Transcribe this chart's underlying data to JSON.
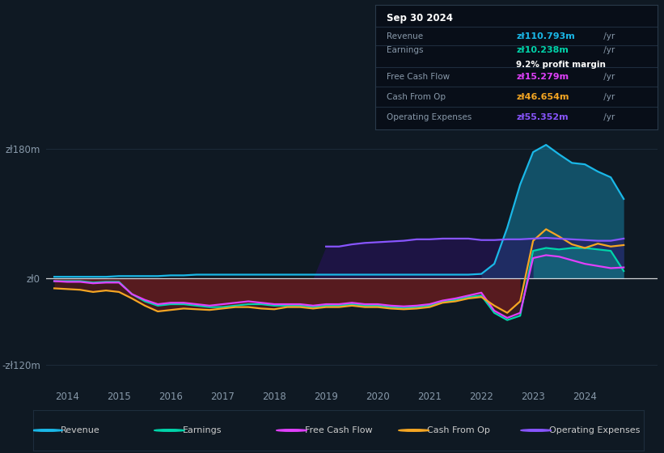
{
  "bg_color": "#0f1923",
  "plot_bg_color": "#0f1923",
  "grid_color": "#1e2d3d",
  "ylim": [
    -145,
    210
  ],
  "yticks": [
    -120,
    0,
    180
  ],
  "ytick_labels": [
    "-zł120m",
    "zł0",
    "zł180m"
  ],
  "xlim_start": 2013.6,
  "xlim_end": 2025.4,
  "xtick_years": [
    2014,
    2015,
    2016,
    2017,
    2018,
    2019,
    2020,
    2021,
    2022,
    2023,
    2024
  ],
  "series_colors": {
    "revenue": "#1ab8e8",
    "earnings": "#00d4aa",
    "free_cash_flow": "#e040fb",
    "cash_from_op": "#f5a623",
    "operating_expenses": "#8855ff"
  },
  "legend": [
    {
      "label": "Revenue",
      "color": "#1ab8e8"
    },
    {
      "label": "Earnings",
      "color": "#00d4aa"
    },
    {
      "label": "Free Cash Flow",
      "color": "#e040fb"
    },
    {
      "label": "Cash From Op",
      "color": "#f5a623"
    },
    {
      "label": "Operating Expenses",
      "color": "#8855ff"
    }
  ],
  "info_box": {
    "date": "Sep 30 2024",
    "revenue_val": "zł110.793m",
    "revenue_color": "#1ab8e8",
    "earnings_val": "zł10.238m",
    "earnings_color": "#00d4aa",
    "profit_margin": "9.2%",
    "fcf_val": "zł15.279m",
    "fcf_color": "#e040fb",
    "cash_op_val": "zł46.654m",
    "cash_op_color": "#f5a623",
    "op_exp_val": "zł55.352m",
    "op_exp_color": "#8855ff"
  },
  "years": [
    2013.75,
    2014.0,
    2014.25,
    2014.5,
    2014.75,
    2015.0,
    2015.25,
    2015.5,
    2015.75,
    2016.0,
    2016.25,
    2016.5,
    2016.75,
    2017.0,
    2017.25,
    2017.5,
    2017.75,
    2018.0,
    2018.25,
    2018.5,
    2018.75,
    2019.0,
    2019.25,
    2019.5,
    2019.75,
    2020.0,
    2020.25,
    2020.5,
    2020.75,
    2021.0,
    2021.25,
    2021.5,
    2021.75,
    2022.0,
    2022.25,
    2022.5,
    2022.75,
    2023.0,
    2023.25,
    2023.5,
    2023.75,
    2024.0,
    2024.25,
    2024.5,
    2024.75
  ],
  "revenue": [
    2,
    2,
    2,
    2,
    2,
    3,
    3,
    3,
    3,
    4,
    4,
    5,
    5,
    5,
    5,
    5,
    5,
    5,
    5,
    5,
    5,
    5,
    5,
    5,
    5,
    5,
    5,
    5,
    5,
    5,
    5,
    5,
    5,
    6,
    20,
    70,
    130,
    175,
    185,
    172,
    160,
    158,
    148,
    140,
    110
  ],
  "earnings": [
    -4,
    -4,
    -4,
    -6,
    -5,
    -5,
    -22,
    -32,
    -38,
    -36,
    -36,
    -38,
    -40,
    -40,
    -38,
    -36,
    -36,
    -38,
    -38,
    -38,
    -40,
    -38,
    -38,
    -36,
    -38,
    -38,
    -40,
    -41,
    -40,
    -38,
    -33,
    -30,
    -26,
    -24,
    -48,
    -58,
    -52,
    38,
    42,
    40,
    42,
    42,
    40,
    38,
    10
  ],
  "free_cash_flow": [
    -4,
    -5,
    -5,
    -7,
    -6,
    -6,
    -22,
    -30,
    -36,
    -34,
    -34,
    -36,
    -38,
    -36,
    -34,
    -32,
    -34,
    -36,
    -36,
    -36,
    -38,
    -36,
    -36,
    -34,
    -36,
    -36,
    -38,
    -39,
    -38,
    -36,
    -31,
    -28,
    -24,
    -20,
    -45,
    -55,
    -48,
    28,
    32,
    30,
    25,
    20,
    17,
    14,
    15
  ],
  "cash_from_op": [
    -14,
    -15,
    -16,
    -19,
    -17,
    -19,
    -28,
    -38,
    -46,
    -44,
    -42,
    -43,
    -44,
    -42,
    -40,
    -40,
    -42,
    -43,
    -40,
    -40,
    -42,
    -40,
    -40,
    -38,
    -40,
    -40,
    -42,
    -43,
    -42,
    -40,
    -34,
    -32,
    -28,
    -26,
    -38,
    -48,
    -32,
    52,
    68,
    58,
    47,
    42,
    48,
    44,
    46
  ],
  "operating_expenses": [
    0,
    0,
    0,
    0,
    0,
    0,
    0,
    0,
    0,
    0,
    0,
    0,
    0,
    0,
    0,
    0,
    0,
    0,
    0,
    0,
    0,
    44,
    44,
    47,
    49,
    50,
    51,
    52,
    54,
    54,
    55,
    55,
    55,
    53,
    53,
    54,
    54,
    55,
    56,
    55,
    54,
    53,
    52,
    52,
    55
  ]
}
